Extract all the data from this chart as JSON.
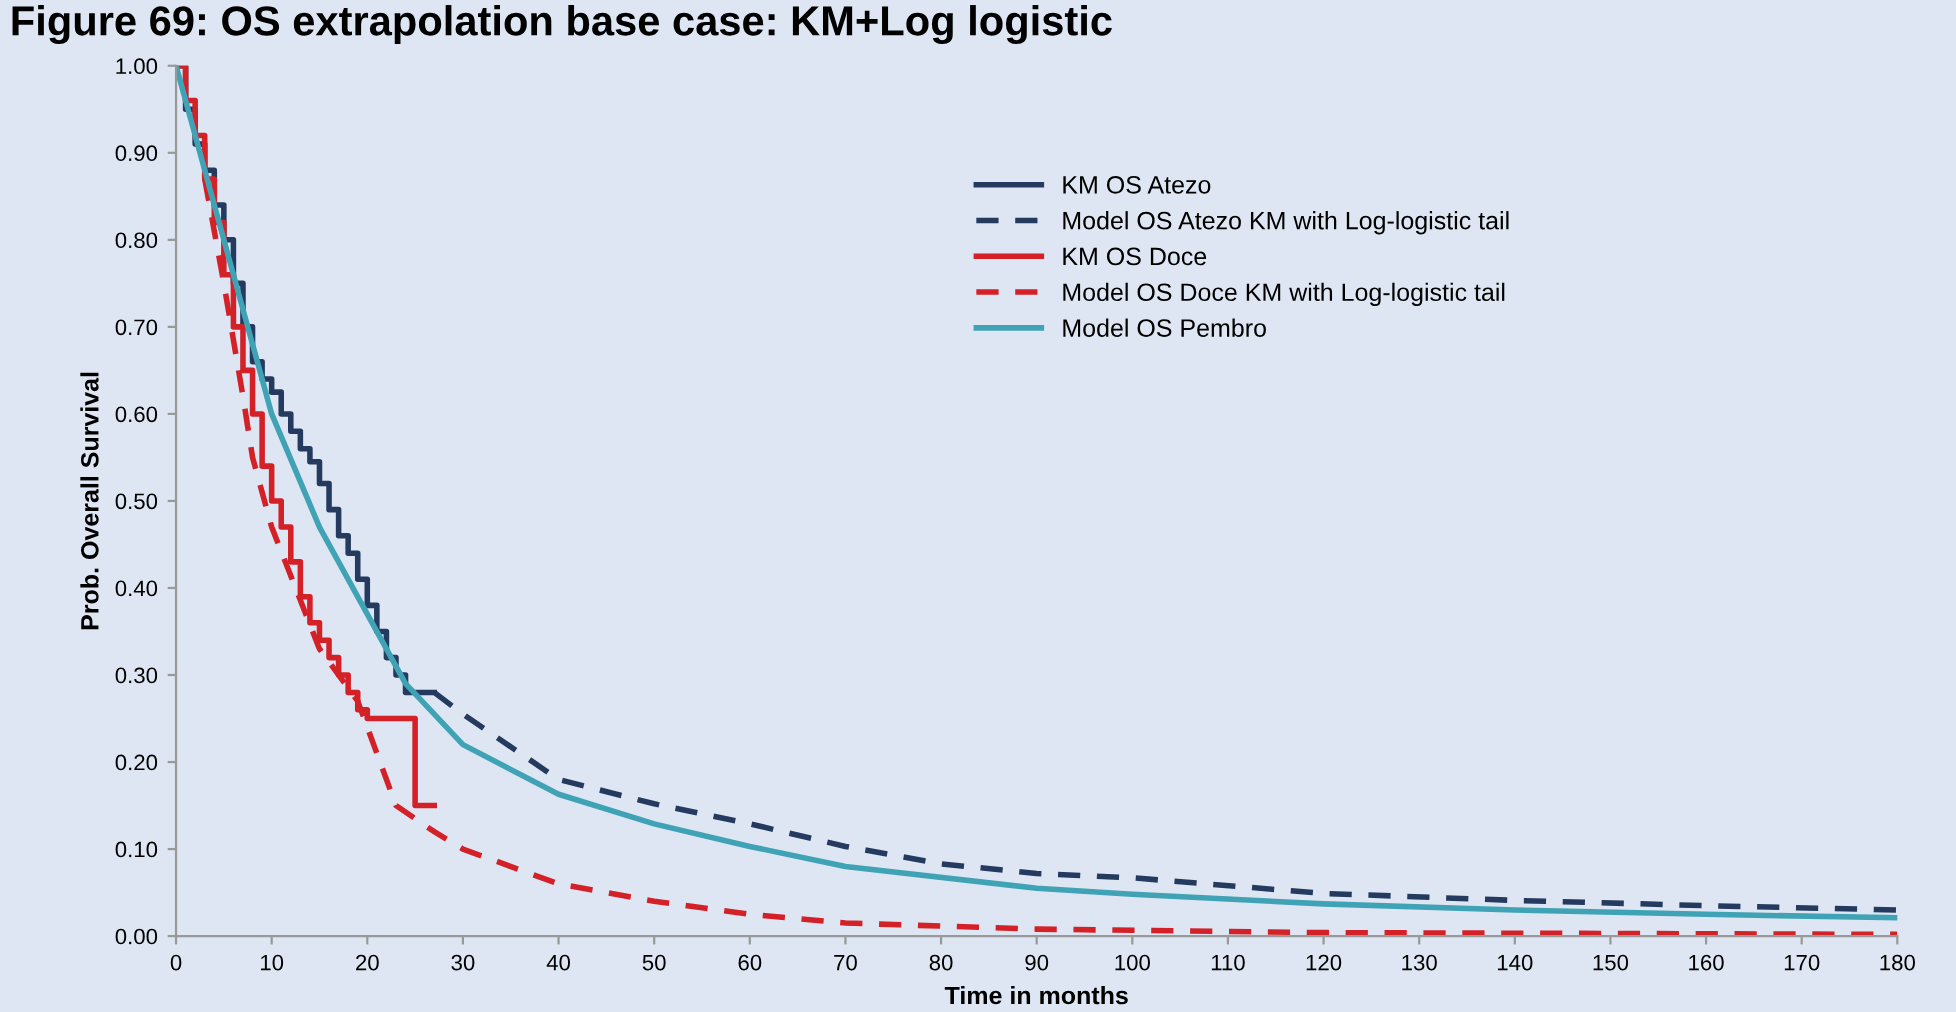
{
  "chart_data": {
    "type": "line",
    "title": "Figure 69: OS extrapolation base case: KM+Log logistic",
    "xlabel": "Time in months",
    "ylabel": "Prob. Overall Survival",
    "xlim": [
      0,
      180
    ],
    "xticks": [
      0,
      10,
      20,
      30,
      40,
      50,
      60,
      70,
      80,
      90,
      100,
      110,
      120,
      130,
      140,
      150,
      160,
      170,
      180
    ],
    "ylim": [
      0,
      1
    ],
    "yticks": [
      {
        "value": 0,
        "label": "0.00"
      },
      {
        "value": 0.1,
        "label": "0.10"
      },
      {
        "value": 0.2,
        "label": "0.20"
      },
      {
        "value": 0.3,
        "label": "0.30"
      },
      {
        "value": 0.4,
        "label": "0.40"
      },
      {
        "value": 0.5,
        "label": "0.50"
      },
      {
        "value": 0.6,
        "label": "0.60"
      },
      {
        "value": 0.7,
        "label": "0.70"
      },
      {
        "value": 0.8,
        "label": "0.80"
      },
      {
        "value": 0.9,
        "label": "0.90"
      },
      {
        "value": 1,
        "label": "1.00"
      }
    ],
    "grid": false,
    "legend": "top",
    "series": [
      {
        "name": "KM OS Atezo",
        "type": "step",
        "line_style": "solid",
        "color": "#243a5e",
        "x": [
          0,
          1,
          2,
          3,
          4,
          5,
          6,
          7,
          8,
          9,
          10,
          11,
          12,
          13,
          14,
          15,
          16,
          17,
          18,
          19,
          20,
          21,
          22,
          23,
          24,
          27
        ],
        "values": [
          1.0,
          0.95,
          0.91,
          0.88,
          0.84,
          0.8,
          0.75,
          0.7,
          0.66,
          0.64,
          0.625,
          0.6,
          0.58,
          0.56,
          0.545,
          0.52,
          0.49,
          0.46,
          0.44,
          0.41,
          0.38,
          0.35,
          0.32,
          0.3,
          0.28,
          0.28
        ]
      },
      {
        "name": "Model OS Atezo KM with Log-logistic tail",
        "line_style": "dashed",
        "color": "#243a5e",
        "x": [
          27,
          30,
          40,
          50,
          60,
          70,
          80,
          90,
          100,
          120,
          140,
          160,
          180
        ],
        "values": [
          0.28,
          0.255,
          0.18,
          0.152,
          0.129,
          0.103,
          0.083,
          0.072,
          0.067,
          0.049,
          0.041,
          0.035,
          0.03
        ]
      },
      {
        "name": "KM OS Doce",
        "type": "step",
        "line_style": "solid",
        "color": "#d42027",
        "x": [
          0,
          1,
          2,
          3,
          4,
          5,
          6,
          7,
          8,
          9,
          10,
          11,
          12,
          13,
          14,
          15,
          16,
          17,
          18,
          19,
          20,
          25,
          27
        ],
        "values": [
          1.0,
          0.96,
          0.92,
          0.87,
          0.82,
          0.76,
          0.7,
          0.65,
          0.6,
          0.54,
          0.5,
          0.47,
          0.43,
          0.39,
          0.36,
          0.34,
          0.32,
          0.3,
          0.28,
          0.26,
          0.25,
          0.15,
          0.15
        ]
      },
      {
        "name": "Model OS Doce KM with Log-logistic tail",
        "line_style": "dashed",
        "color": "#d42027",
        "x": [
          3,
          5,
          7,
          8,
          10,
          15,
          19,
          23,
          27,
          30,
          40,
          50,
          60,
          70,
          90,
          120,
          180
        ],
        "values": [
          0.87,
          0.75,
          0.62,
          0.55,
          0.47,
          0.33,
          0.27,
          0.15,
          0.12,
          0.1,
          0.06,
          0.04,
          0.025,
          0.015,
          0.008,
          0.004,
          0.002
        ]
      },
      {
        "name": "Model OS Pembro",
        "line_style": "solid",
        "color": "#3fa3b5",
        "x": [
          0,
          5,
          10,
          15,
          20,
          24,
          30,
          40,
          50,
          60,
          70,
          90,
          100,
          120,
          140,
          160,
          180
        ],
        "values": [
          1.0,
          0.8,
          0.6,
          0.47,
          0.37,
          0.29,
          0.22,
          0.163,
          0.129,
          0.103,
          0.08,
          0.055,
          0.048,
          0.037,
          0.03,
          0.025,
          0.021
        ]
      }
    ]
  }
}
